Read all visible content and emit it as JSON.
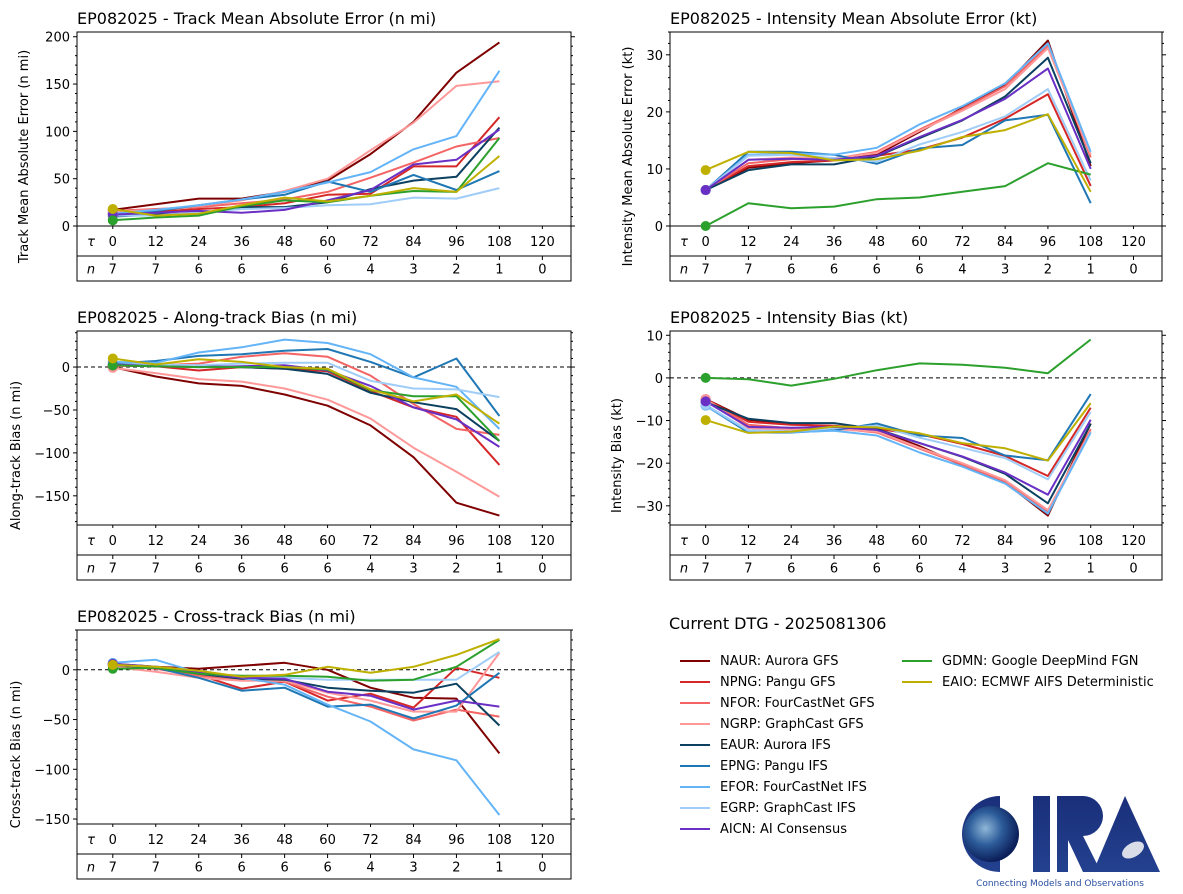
{
  "storm_id": "EP082025",
  "models": [
    {
      "code": "NAUR",
      "name": "Aurora GFS",
      "color": "#7f0000"
    },
    {
      "code": "NPNG",
      "name": "Pangu GFS",
      "color": "#d62728"
    },
    {
      "code": "NFOR",
      "name": "FourCastNet GFS",
      "color": "#f46464"
    },
    {
      "code": "NGRP",
      "name": "GraphCast GFS",
      "color": "#ff9999"
    },
    {
      "code": "EAUR",
      "name": "Aurora IFS",
      "color": "#0b4060"
    },
    {
      "code": "EPNG",
      "name": "Pangu IFS",
      "color": "#1f77b4"
    },
    {
      "code": "EFOR",
      "name": "FourCastNet IFS",
      "color": "#64b4f8"
    },
    {
      "code": "EGRP",
      "name": "GraphCast IFS",
      "color": "#a0cdf8"
    },
    {
      "code": "AICN",
      "name": "AI Consensus",
      "color": "#6a2fc4"
    },
    {
      "code": "GDMN",
      "name": "Google DeepMind FGN",
      "color": "#2ca02c"
    },
    {
      "code": "EAIO",
      "name": "ECMWF AIFS Deterministic",
      "color": "#bfb000"
    }
  ],
  "legend": {
    "title": "Current DTG - 2025081306",
    "items": [
      "NAUR: Aurora GFS",
      "NPNG: Pangu GFS",
      "NFOR: FourCastNet GFS",
      "NGRP: GraphCast GFS",
      "EAUR: Aurora IFS",
      "EPNG: Pangu IFS",
      "EFOR: FourCastNet IFS",
      "EGRP: GraphCast IFS",
      "AICN: AI Consensus",
      "GDMN: Google DeepMind FGN",
      "EAIO: ECMWF AIFS Deterministic"
    ]
  },
  "logo": {
    "text": "CIRA",
    "tagline": "Connecting Models and Observations"
  },
  "chart_data": [
    {
      "id": "track-mae",
      "type": "line",
      "title": "EP082025 - Track Mean Absolute Error (n mi)",
      "xlabel": "",
      "ylabel": "Track Mean Absolute Error (n mi)",
      "x": [
        0,
        12,
        24,
        36,
        48,
        60,
        72,
        84,
        96,
        108,
        120
      ],
      "n": [
        7,
        7,
        6,
        6,
        6,
        6,
        4,
        3,
        2,
        1,
        0
      ],
      "ylim": [
        0,
        205
      ],
      "yticks": [
        0,
        50,
        100,
        150,
        200
      ],
      "zero_line": false,
      "series": [
        {
          "name": "NAUR",
          "values": [
            17,
            23,
            29,
            29,
            36,
            48,
            76,
            110,
            162,
            194
          ]
        },
        {
          "name": "NPNG",
          "values": [
            14,
            15,
            18,
            20,
            24,
            33,
            34,
            63,
            63,
            115
          ]
        },
        {
          "name": "NFOR",
          "values": [
            16,
            18,
            20,
            24,
            28,
            36,
            51,
            67,
            84,
            93
          ]
        },
        {
          "name": "NGRP",
          "values": [
            15,
            17,
            21,
            27,
            37,
            50,
            80,
            109,
            148,
            153
          ]
        },
        {
          "name": "EAUR",
          "values": [
            10,
            12,
            13,
            20,
            20,
            25,
            39,
            48,
            52,
            104
          ]
        },
        {
          "name": "EPNG",
          "values": [
            12,
            16,
            22,
            28,
            33,
            47,
            36,
            54,
            38,
            58
          ]
        },
        {
          "name": "EFOR",
          "values": [
            13,
            17,
            22,
            28,
            36,
            46,
            57,
            81,
            95,
            164
          ]
        },
        {
          "name": "EGRP",
          "values": [
            11,
            11,
            14,
            18,
            19,
            22,
            23,
            30,
            29,
            40
          ]
        },
        {
          "name": "AICN",
          "values": [
            12,
            14,
            16,
            14,
            17,
            27,
            38,
            65,
            70,
            102
          ]
        },
        {
          "name": "GDMN",
          "values": [
            6,
            9,
            11,
            21,
            27,
            25,
            32,
            37,
            36,
            93
          ]
        },
        {
          "name": "EAIO",
          "values": [
            18,
            11,
            13,
            22,
            30,
            26,
            32,
            40,
            36,
            74
          ]
        }
      ]
    },
    {
      "id": "intensity-mae",
      "type": "line",
      "title": "EP082025 - Intensity Mean Absolute Error (kt)",
      "xlabel": "",
      "ylabel": "Intensity Mean Absolute Error (kt)",
      "x": [
        0,
        12,
        24,
        36,
        48,
        60,
        72,
        84,
        96,
        108,
        120
      ],
      "n": [
        7,
        7,
        6,
        6,
        6,
        6,
        4,
        3,
        2,
        1,
        0
      ],
      "ylim": [
        0,
        34
      ],
      "yticks": [
        0,
        10,
        20,
        30
      ],
      "zero_line": false,
      "series": [
        {
          "name": "NAUR",
          "values": [
            6.3,
            10.2,
            11.0,
            11.5,
            12.5,
            16.5,
            20.7,
            24.7,
            32.5,
            10.5
          ]
        },
        {
          "name": "NPNG",
          "values": [
            6.3,
            10.5,
            11.2,
            11.5,
            12.3,
            13.4,
            15.5,
            18.8,
            23.1,
            7.0
          ]
        },
        {
          "name": "NFOR",
          "values": [
            6.3,
            11.0,
            11.7,
            11.8,
            13.0,
            16.9,
            20.5,
            24.5,
            31.6,
            12.0
          ]
        },
        {
          "name": "NGRP",
          "values": [
            6.3,
            11.6,
            12.0,
            11.9,
            12.8,
            16.7,
            20.2,
            24.0,
            31.2,
            12.5
          ]
        },
        {
          "name": "EAUR",
          "values": [
            6.3,
            9.8,
            10.8,
            10.8,
            12.2,
            15.4,
            18.5,
            22.7,
            29.5,
            11.0
          ]
        },
        {
          "name": "EPNG",
          "values": [
            6.3,
            13.0,
            13.0,
            12.5,
            10.9,
            13.6,
            14.2,
            18.5,
            19.5,
            4.0
          ]
        },
        {
          "name": "EFOR",
          "values": [
            6.3,
            12.5,
            12.7,
            12.5,
            13.7,
            17.8,
            21.0,
            25.0,
            32.0,
            13.0
          ]
        },
        {
          "name": "EGRP",
          "values": [
            6.3,
            12.3,
            12.5,
            11.9,
            11.3,
            14.3,
            16.5,
            19.2,
            24.0,
            8.0
          ]
        },
        {
          "name": "AICN",
          "values": [
            6.3,
            11.6,
            11.8,
            11.6,
            12.3,
            15.6,
            18.6,
            22.3,
            27.6,
            10.0
          ]
        },
        {
          "name": "GDMN",
          "values": [
            0.0,
            4.0,
            3.1,
            3.4,
            4.7,
            5.0,
            6.0,
            7.0,
            11.0,
            9.0
          ]
        },
        {
          "name": "EAIO",
          "values": [
            9.8,
            13.0,
            12.8,
            11.5,
            11.7,
            13.2,
            15.6,
            16.8,
            19.6,
            6.0
          ]
        }
      ]
    },
    {
      "id": "along-track-bias",
      "type": "line",
      "title": "EP082025 - Along-track Bias (n mi)",
      "xlabel": "",
      "ylabel": "Along-track Bias (n mi)",
      "x": [
        0,
        12,
        24,
        36,
        48,
        60,
        72,
        84,
        96,
        108,
        120
      ],
      "n": [
        7,
        7,
        6,
        6,
        6,
        6,
        4,
        3,
        2,
        1,
        0
      ],
      "ylim": [
        -184,
        42
      ],
      "yticks": [
        -150,
        -100,
        -50,
        0
      ],
      "zero_line": true,
      "series": [
        {
          "name": "NAUR",
          "values": [
            0,
            -11,
            -19,
            -22,
            -32,
            -45,
            -68,
            -105,
            -158,
            -173
          ]
        },
        {
          "name": "NPNG",
          "values": [
            2,
            1,
            -4,
            0,
            -2,
            -5,
            -28,
            -47,
            -58,
            -114
          ]
        },
        {
          "name": "NFOR",
          "values": [
            1,
            2,
            4,
            12,
            16,
            12,
            -10,
            -43,
            -72,
            -79
          ]
        },
        {
          "name": "NGRP",
          "values": [
            -1,
            -7,
            -14,
            -17,
            -25,
            -38,
            -60,
            -94,
            -122,
            -151
          ]
        },
        {
          "name": "EAUR",
          "values": [
            2,
            1,
            1,
            0,
            -2,
            -8,
            -30,
            -41,
            -49,
            -86
          ]
        },
        {
          "name": "EPNG",
          "values": [
            4,
            7,
            13,
            15,
            19,
            21,
            6,
            -12,
            10,
            -57
          ]
        },
        {
          "name": "EFOR",
          "values": [
            6,
            5,
            17,
            23,
            32,
            28,
            15,
            -12,
            -23,
            -72
          ]
        },
        {
          "name": "EGRP",
          "values": [
            3,
            3,
            2,
            4,
            5,
            5,
            -16,
            -25,
            -26,
            -35
          ]
        },
        {
          "name": "AICN",
          "values": [
            3,
            1,
            0,
            1,
            2,
            -4,
            -22,
            -47,
            -61,
            -93
          ]
        },
        {
          "name": "GDMN",
          "values": [
            2,
            1,
            0,
            0,
            0,
            -3,
            -27,
            -34,
            -34,
            -86
          ]
        },
        {
          "name": "EAIO",
          "values": [
            10,
            3,
            9,
            6,
            0,
            -2,
            -26,
            -40,
            -32,
            -66
          ]
        }
      ]
    },
    {
      "id": "intensity-bias",
      "type": "line",
      "title": "EP082025 - Intensity Bias (kt)",
      "xlabel": "",
      "ylabel": "Intensity Bias (kt)",
      "x": [
        0,
        12,
        24,
        36,
        48,
        60,
        72,
        84,
        96,
        108,
        120
      ],
      "n": [
        7,
        7,
        6,
        6,
        6,
        6,
        4,
        3,
        2,
        1,
        0
      ],
      "ylim": [
        -34.5,
        11
      ],
      "yticks": [
        -30,
        -20,
        -10,
        0,
        10
      ],
      "zero_line": true,
      "series": [
        {
          "name": "NAUR",
          "values": [
            -5.0,
            -9.8,
            -10.8,
            -11.5,
            -12.2,
            -16.0,
            -20.5,
            -24.5,
            -32.3,
            -10.7
          ]
        },
        {
          "name": "NPNG",
          "values": [
            -5.0,
            -10.3,
            -11.0,
            -11.2,
            -12.0,
            -13.2,
            -15.5,
            -18.3,
            -23.0,
            -7.0
          ]
        },
        {
          "name": "NFOR",
          "values": [
            -5.0,
            -11.0,
            -11.8,
            -11.8,
            -12.8,
            -16.6,
            -20.3,
            -24.3,
            -31.5,
            -12.0
          ]
        },
        {
          "name": "NGRP",
          "values": [
            -5.0,
            -11.8,
            -12.2,
            -12.0,
            -12.6,
            -16.4,
            -20.0,
            -24.0,
            -31.0,
            -12.5
          ]
        },
        {
          "name": "EAUR",
          "values": [
            -5.7,
            -9.6,
            -10.6,
            -10.6,
            -12.0,
            -15.3,
            -18.5,
            -22.5,
            -29.4,
            -10.8
          ]
        },
        {
          "name": "EPNG",
          "values": [
            -6.5,
            -12.8,
            -12.8,
            -12.3,
            -10.7,
            -13.5,
            -14.1,
            -18.2,
            -19.3,
            -3.8
          ]
        },
        {
          "name": "EFOR",
          "values": [
            -6.5,
            -12.5,
            -12.7,
            -12.4,
            -13.5,
            -17.5,
            -20.8,
            -24.8,
            -31.8,
            -12.8
          ]
        },
        {
          "name": "EGRP",
          "values": [
            -6.3,
            -12.3,
            -12.5,
            -11.8,
            -11.2,
            -14.0,
            -16.4,
            -18.8,
            -23.8,
            -8.0
          ]
        },
        {
          "name": "AICN",
          "values": [
            -5.5,
            -11.5,
            -11.7,
            -11.5,
            -12.2,
            -15.3,
            -18.4,
            -22.2,
            -27.4,
            -9.8
          ]
        },
        {
          "name": "GDMN",
          "values": [
            0.0,
            -0.3,
            -1.8,
            -0.2,
            1.8,
            3.4,
            3.1,
            2.4,
            1.1,
            9.0
          ]
        },
        {
          "name": "EAIO",
          "values": [
            -9.9,
            -12.9,
            -12.6,
            -11.4,
            -11.6,
            -13.0,
            -15.3,
            -16.5,
            -19.4,
            -5.9
          ]
        }
      ]
    },
    {
      "id": "cross-track-bias",
      "type": "line",
      "title": "EP082025 - Cross-track Bias (n mi)",
      "xlabel": "",
      "ylabel": "Cross-track Bias (n mi)",
      "x": [
        0,
        12,
        24,
        36,
        48,
        60,
        72,
        84,
        96,
        108,
        120
      ],
      "n": [
        7,
        7,
        6,
        6,
        6,
        6,
        4,
        3,
        2,
        1,
        0
      ],
      "ylim": [
        -155,
        40
      ],
      "yticks": [
        -150,
        -100,
        -50,
        0
      ],
      "zero_line": true,
      "series": [
        {
          "name": "NAUR",
          "values": [
            6,
            3,
            1,
            4,
            7,
            0,
            -18,
            -28,
            -29,
            -84
          ]
        },
        {
          "name": "NPNG",
          "values": [
            5,
            2,
            -5,
            -19,
            -12,
            -31,
            -24,
            -38,
            2,
            -8
          ]
        },
        {
          "name": "NFOR",
          "values": [
            4,
            1,
            -6,
            -10,
            -12,
            -27,
            -37,
            -51,
            -40,
            -47
          ]
        },
        {
          "name": "NGRP",
          "values": [
            3,
            -2,
            -8,
            -11,
            -11,
            -23,
            -31,
            -42,
            -42,
            17
          ]
        },
        {
          "name": "EAUR",
          "values": [
            5,
            2,
            -4,
            -9,
            -10,
            -18,
            -21,
            -23,
            -14,
            -56
          ]
        },
        {
          "name": "EPNG",
          "values": [
            6,
            2,
            -8,
            -21,
            -18,
            -37,
            -35,
            -49,
            -36,
            -3
          ]
        },
        {
          "name": "EFOR",
          "values": [
            7,
            10,
            -3,
            -8,
            -15,
            -35,
            -52,
            -80,
            -91,
            -146
          ]
        },
        {
          "name": "EGRP",
          "values": [
            5,
            3,
            -3,
            -7,
            -8,
            -10,
            -10,
            -10,
            -10,
            18
          ]
        },
        {
          "name": "AICN",
          "values": [
            6,
            3,
            -3,
            -8,
            -9,
            -22,
            -26,
            -40,
            -31,
            -37
          ]
        },
        {
          "name": "GDMN",
          "values": [
            1,
            2,
            -4,
            -6,
            -6,
            -7,
            -11,
            -10,
            3,
            30
          ]
        },
        {
          "name": "EAIO",
          "values": [
            5,
            3,
            -1,
            -7,
            -5,
            3,
            -3,
            3,
            15,
            31
          ]
        }
      ]
    }
  ],
  "axis": {
    "tau_label": "τ",
    "n_label": "n"
  }
}
